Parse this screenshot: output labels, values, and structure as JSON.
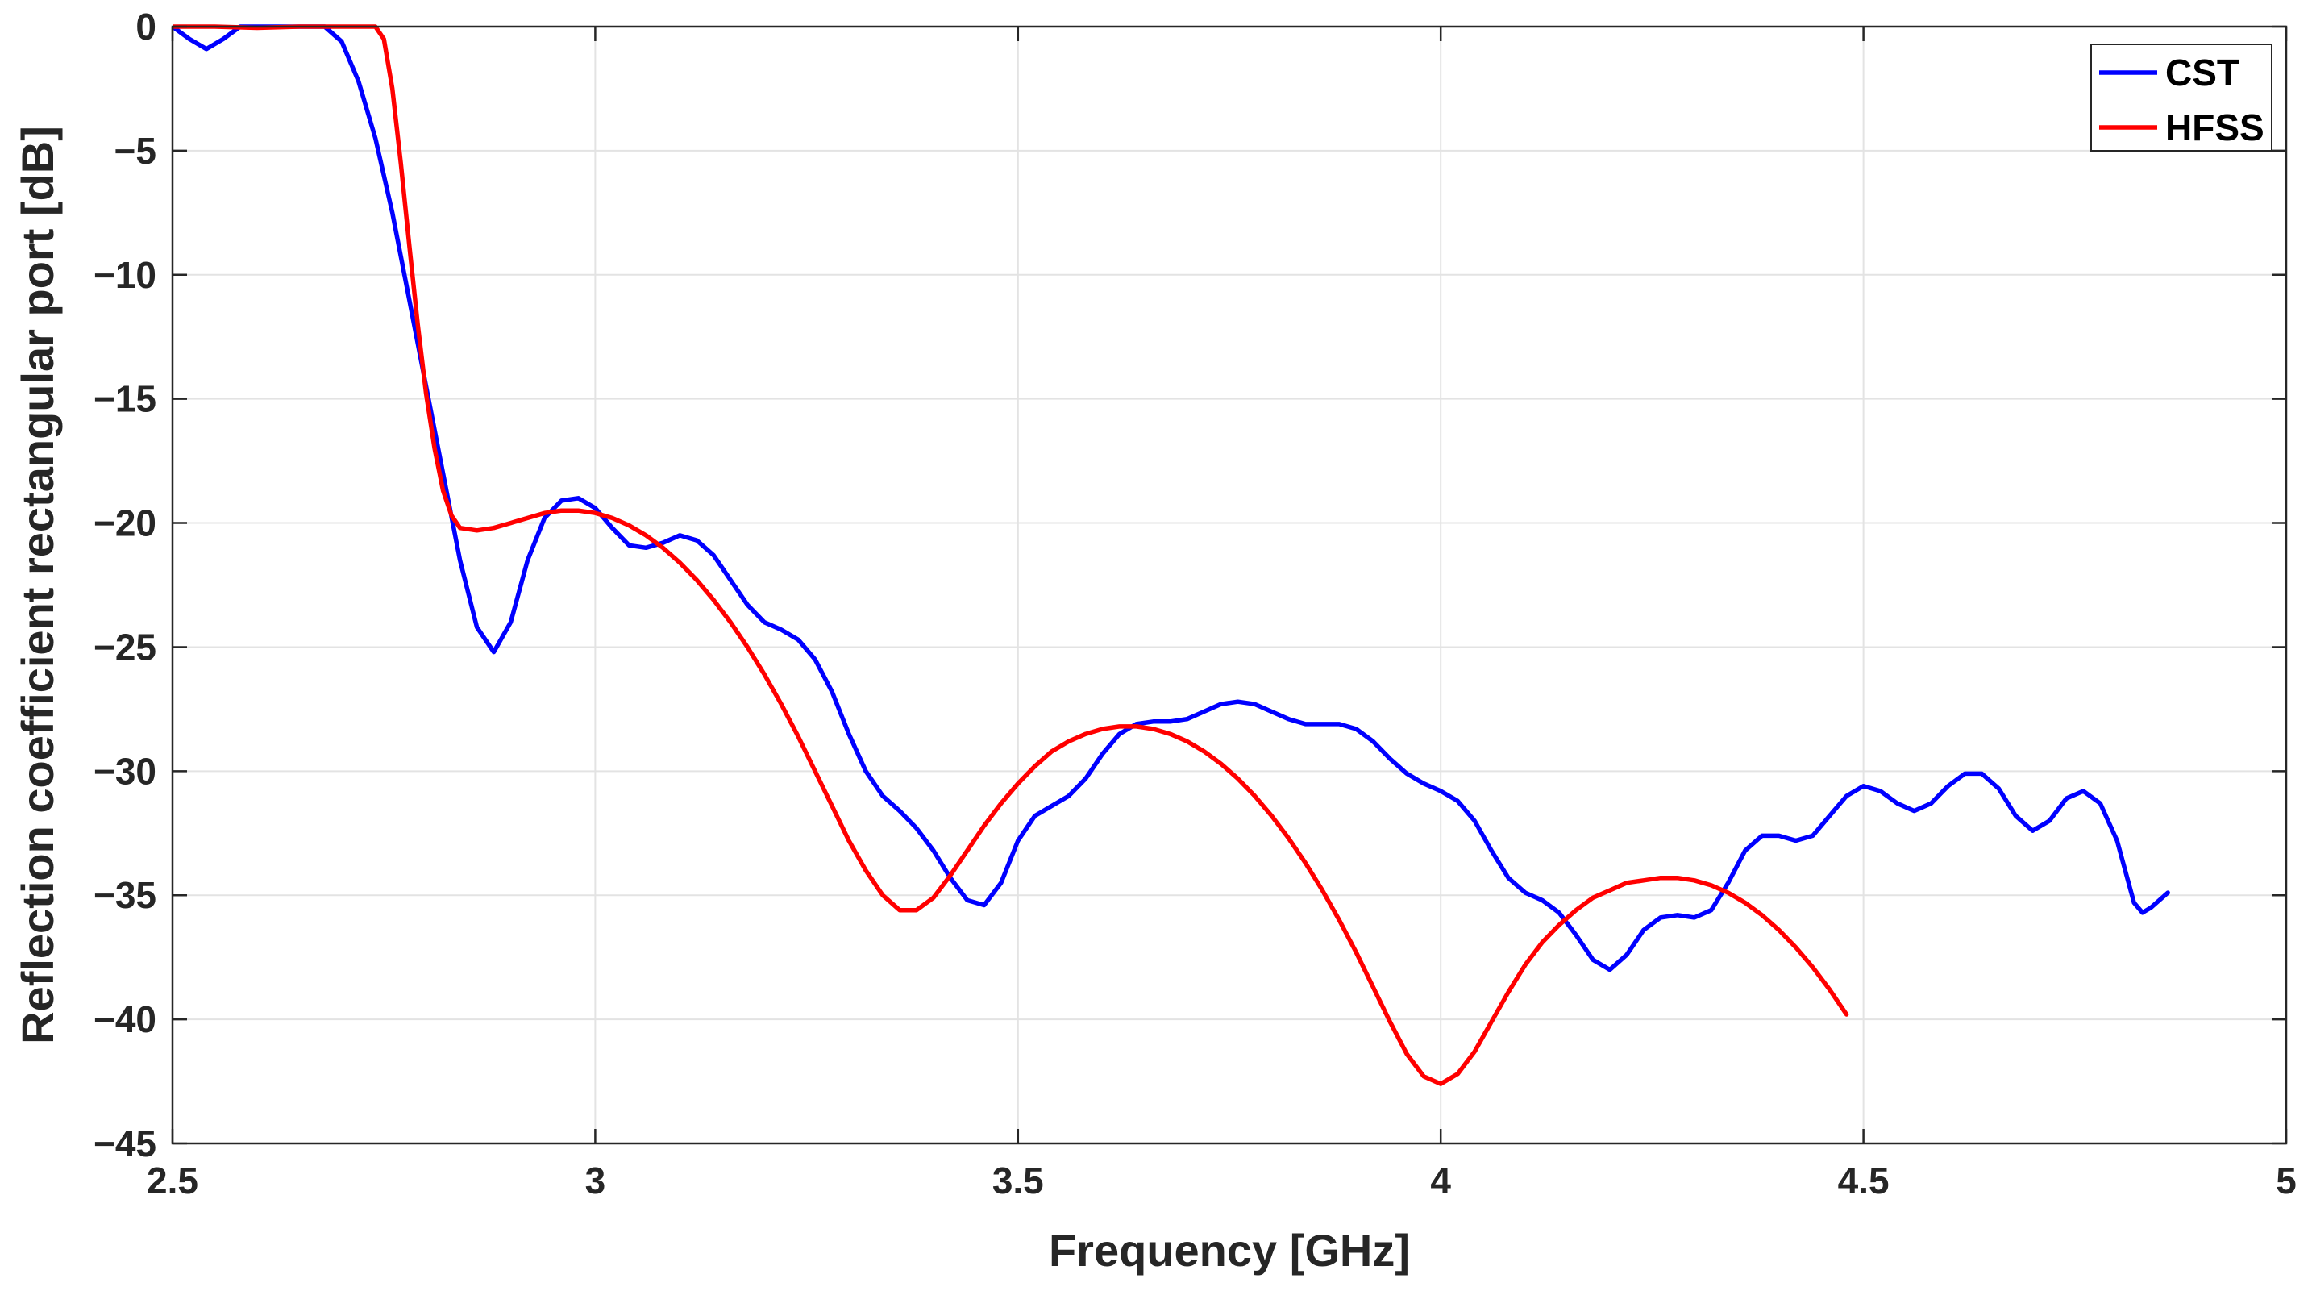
{
  "chart_data": {
    "type": "line",
    "title": "",
    "xlabel": "Frequency [GHz]",
    "ylabel": "Reflection coefficient rectangular port [dB]",
    "xlim": [
      2.5,
      5
    ],
    "ylim": [
      -45,
      0
    ],
    "xticks": [
      2.5,
      3,
      3.5,
      4,
      4.5,
      5
    ],
    "xtick_labels": [
      "2.5",
      "3",
      "3.5",
      "4",
      "4.5",
      "5"
    ],
    "yticks": [
      0,
      -5,
      -10,
      -15,
      -20,
      -25,
      -30,
      -35,
      -40,
      -45
    ],
    "ytick_labels": [
      "0",
      "−5",
      "−10",
      "−15",
      "−20",
      "−25",
      "−30",
      "−35",
      "−40",
      "−45"
    ],
    "grid": true,
    "legend_position": "top-right",
    "series": [
      {
        "name": "CST",
        "color": "#0000ff",
        "points": [
          [
            2.5,
            0
          ],
          [
            2.52,
            -0.5
          ],
          [
            2.54,
            -0.9
          ],
          [
            2.56,
            -0.5
          ],
          [
            2.58,
            0
          ],
          [
            2.62,
            0
          ],
          [
            2.66,
            0
          ],
          [
            2.68,
            0
          ],
          [
            2.7,
            -0.6
          ],
          [
            2.72,
            -2.2
          ],
          [
            2.74,
            -4.5
          ],
          [
            2.76,
            -7.5
          ],
          [
            2.78,
            -11
          ],
          [
            2.8,
            -14.5
          ],
          [
            2.82,
            -18
          ],
          [
            2.84,
            -21.5
          ],
          [
            2.86,
            -24.2
          ],
          [
            2.88,
            -25.2
          ],
          [
            2.9,
            -24
          ],
          [
            2.92,
            -21.5
          ],
          [
            2.94,
            -19.8
          ],
          [
            2.96,
            -19.1
          ],
          [
            2.98,
            -19
          ],
          [
            3.0,
            -19.4
          ],
          [
            3.02,
            -20.2
          ],
          [
            3.04,
            -20.9
          ],
          [
            3.06,
            -21
          ],
          [
            3.08,
            -20.8
          ],
          [
            3.1,
            -20.5
          ],
          [
            3.12,
            -20.7
          ],
          [
            3.14,
            -21.3
          ],
          [
            3.16,
            -22.3
          ],
          [
            3.18,
            -23.3
          ],
          [
            3.2,
            -24
          ],
          [
            3.22,
            -24.3
          ],
          [
            3.24,
            -24.7
          ],
          [
            3.26,
            -25.5
          ],
          [
            3.28,
            -26.8
          ],
          [
            3.3,
            -28.5
          ],
          [
            3.32,
            -30
          ],
          [
            3.34,
            -31
          ],
          [
            3.36,
            -31.6
          ],
          [
            3.38,
            -32.3
          ],
          [
            3.4,
            -33.2
          ],
          [
            3.42,
            -34.3
          ],
          [
            3.44,
            -35.2
          ],
          [
            3.46,
            -35.4
          ],
          [
            3.48,
            -34.5
          ],
          [
            3.5,
            -32.8
          ],
          [
            3.52,
            -31.8
          ],
          [
            3.54,
            -31.4
          ],
          [
            3.56,
            -31
          ],
          [
            3.58,
            -30.3
          ],
          [
            3.6,
            -29.3
          ],
          [
            3.62,
            -28.5
          ],
          [
            3.64,
            -28.1
          ],
          [
            3.66,
            -28
          ],
          [
            3.68,
            -28
          ],
          [
            3.7,
            -27.9
          ],
          [
            3.72,
            -27.6
          ],
          [
            3.74,
            -27.3
          ],
          [
            3.76,
            -27.2
          ],
          [
            3.78,
            -27.3
          ],
          [
            3.8,
            -27.6
          ],
          [
            3.82,
            -27.9
          ],
          [
            3.84,
            -28.1
          ],
          [
            3.86,
            -28.1
          ],
          [
            3.88,
            -28.1
          ],
          [
            3.9,
            -28.3
          ],
          [
            3.92,
            -28.8
          ],
          [
            3.94,
            -29.5
          ],
          [
            3.96,
            -30.1
          ],
          [
            3.98,
            -30.5
          ],
          [
            4.0,
            -30.8
          ],
          [
            4.02,
            -31.2
          ],
          [
            4.04,
            -32
          ],
          [
            4.06,
            -33.2
          ],
          [
            4.08,
            -34.3
          ],
          [
            4.1,
            -34.9
          ],
          [
            4.12,
            -35.2
          ],
          [
            4.14,
            -35.7
          ],
          [
            4.16,
            -36.6
          ],
          [
            4.18,
            -37.6
          ],
          [
            4.2,
            -38
          ],
          [
            4.22,
            -37.4
          ],
          [
            4.24,
            -36.4
          ],
          [
            4.26,
            -35.9
          ],
          [
            4.28,
            -35.8
          ],
          [
            4.3,
            -35.9
          ],
          [
            4.32,
            -35.6
          ],
          [
            4.34,
            -34.5
          ],
          [
            4.36,
            -33.2
          ],
          [
            4.38,
            -32.6
          ],
          [
            4.4,
            -32.6
          ],
          [
            4.42,
            -32.8
          ],
          [
            4.44,
            -32.6
          ],
          [
            4.46,
            -31.8
          ],
          [
            4.48,
            -31
          ],
          [
            4.5,
            -30.6
          ],
          [
            4.52,
            -30.8
          ],
          [
            4.54,
            -31.3
          ],
          [
            4.56,
            -31.6
          ],
          [
            4.58,
            -31.3
          ],
          [
            4.6,
            -30.6
          ],
          [
            4.62,
            -30.1
          ],
          [
            4.64,
            -30.1
          ],
          [
            4.66,
            -30.7
          ],
          [
            4.68,
            -31.8
          ],
          [
            4.7,
            -32.4
          ],
          [
            4.72,
            -32
          ],
          [
            4.74,
            -31.1
          ],
          [
            4.76,
            -30.8
          ],
          [
            4.78,
            -31.3
          ],
          [
            4.8,
            -32.8
          ],
          [
            4.82,
            -35.3
          ],
          [
            4.83,
            -35.7
          ],
          [
            4.84,
            -35.5
          ],
          [
            4.86,
            -34.9
          ]
        ]
      },
      {
        "name": "HFSS",
        "color": "#ff0000",
        "points": [
          [
            2.5,
            0
          ],
          [
            2.55,
            0
          ],
          [
            2.6,
            -0.05
          ],
          [
            2.65,
            0
          ],
          [
            2.7,
            0
          ],
          [
            2.74,
            0
          ],
          [
            2.75,
            -0.5
          ],
          [
            2.76,
            -2.5
          ],
          [
            2.77,
            -5.5
          ],
          [
            2.78,
            -8.8
          ],
          [
            2.79,
            -12
          ],
          [
            2.8,
            -14.8
          ],
          [
            2.81,
            -17
          ],
          [
            2.82,
            -18.7
          ],
          [
            2.83,
            -19.7
          ],
          [
            2.84,
            -20.2
          ],
          [
            2.86,
            -20.3
          ],
          [
            2.88,
            -20.2
          ],
          [
            2.9,
            -20
          ],
          [
            2.92,
            -19.8
          ],
          [
            2.94,
            -19.6
          ],
          [
            2.96,
            -19.5
          ],
          [
            2.98,
            -19.5
          ],
          [
            3.0,
            -19.6
          ],
          [
            3.02,
            -19.8
          ],
          [
            3.04,
            -20.1
          ],
          [
            3.06,
            -20.5
          ],
          [
            3.08,
            -21
          ],
          [
            3.1,
            -21.6
          ],
          [
            3.12,
            -22.3
          ],
          [
            3.14,
            -23.1
          ],
          [
            3.16,
            -24
          ],
          [
            3.18,
            -25
          ],
          [
            3.2,
            -26.1
          ],
          [
            3.22,
            -27.3
          ],
          [
            3.24,
            -28.6
          ],
          [
            3.26,
            -30
          ],
          [
            3.28,
            -31.4
          ],
          [
            3.3,
            -32.8
          ],
          [
            3.32,
            -34
          ],
          [
            3.34,
            -35
          ],
          [
            3.36,
            -35.6
          ],
          [
            3.38,
            -35.6
          ],
          [
            3.4,
            -35.1
          ],
          [
            3.42,
            -34.2
          ],
          [
            3.44,
            -33.2
          ],
          [
            3.46,
            -32.2
          ],
          [
            3.48,
            -31.3
          ],
          [
            3.5,
            -30.5
          ],
          [
            3.52,
            -29.8
          ],
          [
            3.54,
            -29.2
          ],
          [
            3.56,
            -28.8
          ],
          [
            3.58,
            -28.5
          ],
          [
            3.6,
            -28.3
          ],
          [
            3.62,
            -28.2
          ],
          [
            3.64,
            -28.2
          ],
          [
            3.66,
            -28.3
          ],
          [
            3.68,
            -28.5
          ],
          [
            3.7,
            -28.8
          ],
          [
            3.72,
            -29.2
          ],
          [
            3.74,
            -29.7
          ],
          [
            3.76,
            -30.3
          ],
          [
            3.78,
            -31
          ],
          [
            3.8,
            -31.8
          ],
          [
            3.82,
            -32.7
          ],
          [
            3.84,
            -33.7
          ],
          [
            3.86,
            -34.8
          ],
          [
            3.88,
            -36
          ],
          [
            3.9,
            -37.3
          ],
          [
            3.92,
            -38.7
          ],
          [
            3.94,
            -40.1
          ],
          [
            3.96,
            -41.4
          ],
          [
            3.98,
            -42.3
          ],
          [
            4.0,
            -42.6
          ],
          [
            4.02,
            -42.2
          ],
          [
            4.04,
            -41.3
          ],
          [
            4.06,
            -40.1
          ],
          [
            4.08,
            -38.9
          ],
          [
            4.1,
            -37.8
          ],
          [
            4.12,
            -36.9
          ],
          [
            4.14,
            -36.2
          ],
          [
            4.16,
            -35.6
          ],
          [
            4.18,
            -35.1
          ],
          [
            4.2,
            -34.8
          ],
          [
            4.22,
            -34.5
          ],
          [
            4.24,
            -34.4
          ],
          [
            4.26,
            -34.3
          ],
          [
            4.28,
            -34.3
          ],
          [
            4.3,
            -34.4
          ],
          [
            4.32,
            -34.6
          ],
          [
            4.34,
            -34.9
          ],
          [
            4.36,
            -35.3
          ],
          [
            4.38,
            -35.8
          ],
          [
            4.4,
            -36.4
          ],
          [
            4.42,
            -37.1
          ],
          [
            4.44,
            -37.9
          ],
          [
            4.46,
            -38.8
          ],
          [
            4.48,
            -39.8
          ]
        ]
      }
    ]
  }
}
